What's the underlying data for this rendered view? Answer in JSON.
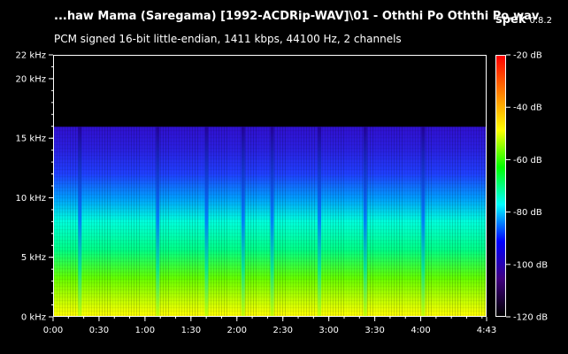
{
  "header": {
    "file_title": "...haw Mama (Saregama) [1992-ACDRip-WAV]\\01 - Oththi Po Oththi Po.wav",
    "app_name": "spek",
    "app_version": "0.8.2",
    "info": "PCM signed 16-bit little-endian, 1411 kbps, 44100 Hz, 2 channels"
  },
  "spectrogram": {
    "freq_axis": {
      "ticks": [
        "0 kHz",
        "5 kHz",
        "10 kHz",
        "15 kHz",
        "20 kHz",
        "22 kHz"
      ],
      "values_khz": [
        0,
        5,
        10,
        15,
        20,
        22
      ],
      "max_khz": 22
    },
    "time_axis": {
      "ticks": [
        "0:00",
        "0:30",
        "1:00",
        "1:30",
        "2:00",
        "2:30",
        "3:00",
        "3:30",
        "4:00",
        "4:43"
      ],
      "values_s": [
        0,
        30,
        60,
        90,
        120,
        150,
        180,
        210,
        240,
        283
      ],
      "max_s": 283
    },
    "cutoff_khz": 16,
    "dips_s": [
      17,
      68,
      100,
      124,
      143,
      174,
      204,
      242
    ]
  },
  "colorbar": {
    "ticks": [
      "-20 dB",
      "-40 dB",
      "-60 dB",
      "-80 dB",
      "-100 dB",
      "-120 dB"
    ],
    "values_db": [
      -20,
      -40,
      -60,
      -80,
      -100,
      -120
    ],
    "colors": [
      "#ff0000",
      "#ff8000",
      "#ffff00",
      "#00ff00",
      "#00ffff",
      "#0000ff",
      "#400080",
      "#000000"
    ]
  }
}
